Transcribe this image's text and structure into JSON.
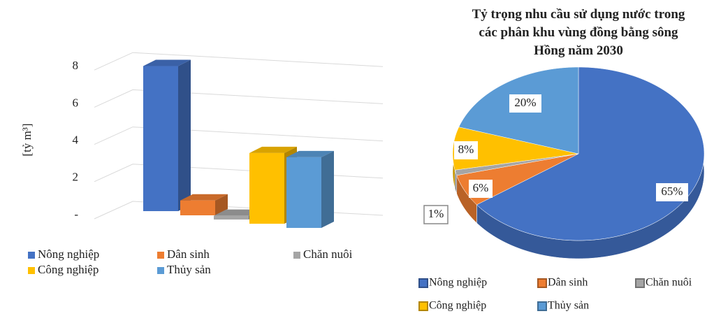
{
  "chart_data": [
    {
      "type": "bar",
      "ylabel": "[tỷ m³]",
      "ylim": [
        0,
        8
      ],
      "yticks": [
        {
          "value": 0,
          "label": "-"
        },
        2,
        4,
        6,
        8
      ],
      "grid": true,
      "series": [
        {
          "name": "Nông nghiệp",
          "color": "#4472c4",
          "values": [
            7.8
          ]
        },
        {
          "name": "Dân sinh",
          "color": "#ed7d31",
          "values": [
            0.8
          ]
        },
        {
          "name": "Chăn nuôi",
          "color": "#a5a5a5",
          "values": [
            0.2
          ]
        },
        {
          "name": "Công nghiệp",
          "color": "#ffc000",
          "values": [
            3.8
          ]
        },
        {
          "name": "Thủy sản",
          "color": "#5b9bd5",
          "values": [
            3.8
          ]
        }
      ]
    },
    {
      "type": "pie",
      "title": "Tỷ trọng nhu cầu sử dụng nước trong các phân khu vùng đồng bằng sông Hồng năm 2030",
      "categories": [
        "Nông nghiệp",
        "Dân sinh",
        "Chăn nuôi",
        "Công nghiệp",
        "Thủy sản"
      ],
      "values": [
        65,
        6,
        1,
        8,
        20
      ],
      "value_labels": [
        "65%",
        "6%",
        "1%",
        "8%",
        "20%"
      ],
      "colors": [
        "#4472c4",
        "#ed7d31",
        "#a5a5a5",
        "#ffc000",
        "#5b9bd5"
      ]
    }
  ]
}
